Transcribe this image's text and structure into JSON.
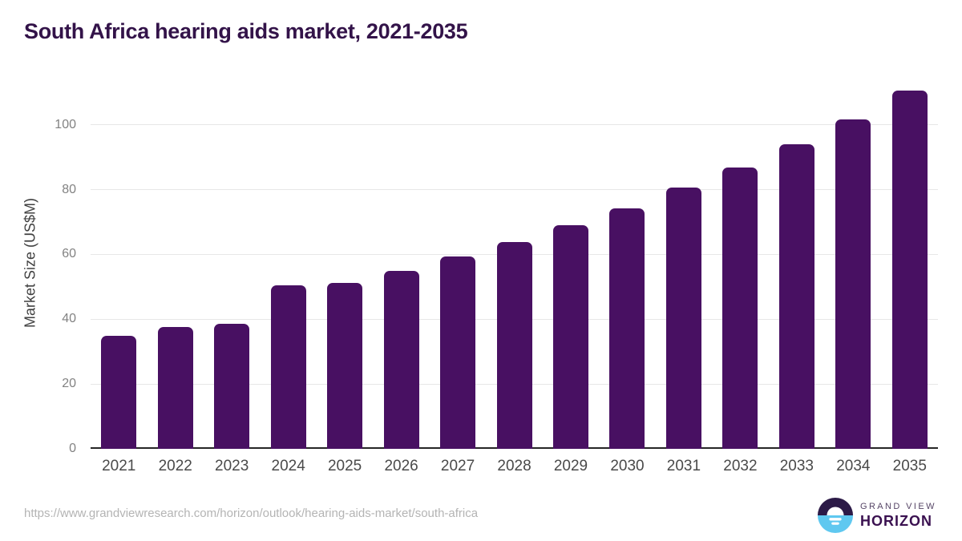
{
  "header": {
    "title": "South Africa hearing aids market, 2021-2035"
  },
  "chart_data": {
    "type": "bar",
    "title": "South Africa hearing aids market, 2021-2035",
    "categories": [
      "2021",
      "2022",
      "2023",
      "2024",
      "2025",
      "2026",
      "2027",
      "2028",
      "2029",
      "2030",
      "2031",
      "2032",
      "2033",
      "2034",
      "2035"
    ],
    "values": [
      34.8,
      37.5,
      38.5,
      50.5,
      51.2,
      54.9,
      59.3,
      63.7,
      69.0,
      74.3,
      80.6,
      86.9,
      93.9,
      101.6,
      110.5
    ],
    "xlabel": "",
    "ylabel": "Market Size (US$M)",
    "yticks": [
      0,
      20,
      40,
      60,
      80,
      100
    ],
    "ylim": [
      0,
      115
    ],
    "grid": true,
    "legend_position": "none",
    "bar_color": "#481062",
    "grid_color": "#e7e7e7",
    "axis_color": "#262626",
    "y_tick_color": "#828282",
    "x_tick_color": "#4a4a4a",
    "title_color": "#331349"
  },
  "footer": {
    "source_url": "https://www.grandviewresearch.com/horizon/outlook/hearing-aids-market/south-africa",
    "logo": {
      "line1": "GRAND VIEW",
      "line2": "HORIZON",
      "mark_top_color": "#2c1a47",
      "mark_bottom_color": "#5fc8f0"
    }
  }
}
